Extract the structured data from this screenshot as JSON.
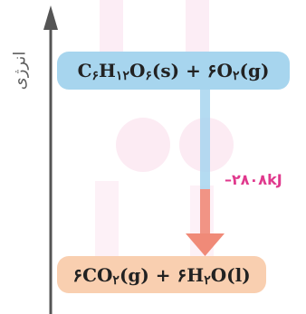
{
  "diagram": {
    "axis_label": "انرژی",
    "reactants": {
      "parts": [
        "C",
        "۶",
        "H",
        "۱۲",
        "O",
        "۶",
        "(s) + ",
        "۶",
        "O",
        "۲",
        "(g)"
      ],
      "color": "#a7d5ee"
    },
    "products": {
      "parts": [
        "۶",
        "CO",
        "۲",
        "(g) + ",
        "۶",
        "H",
        "۲",
        "O(l)"
      ],
      "color": "#f9cfb0"
    },
    "enthalpy_change": "–۲۸۰۸kJ",
    "colors": {
      "axis": "#555555",
      "arrow": "#f08a78",
      "connector": "#a7d5ee",
      "delta_text": "#e0398d"
    }
  }
}
